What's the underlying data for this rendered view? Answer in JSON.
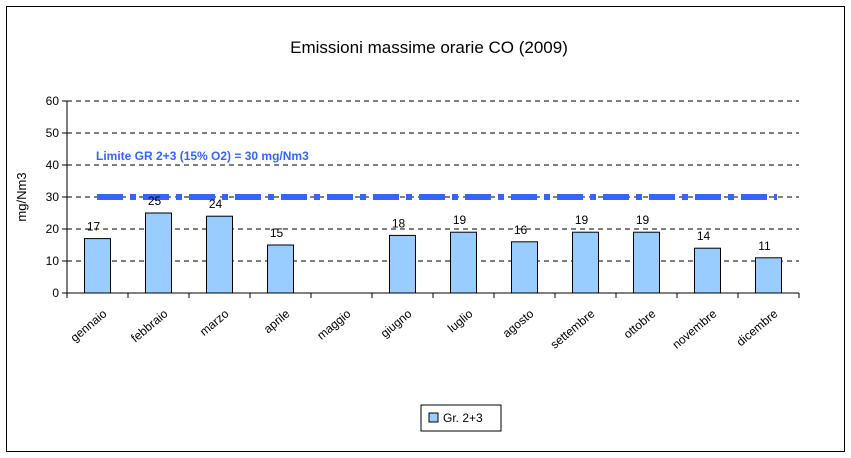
{
  "chart_data": {
    "type": "bar",
    "title": "Emissioni massime orarie CO (2009)",
    "xlabel": "",
    "ylabel": "mg/Nm3",
    "ylim": [
      0,
      60
    ],
    "yticks": [
      0,
      10,
      20,
      30,
      40,
      50,
      60
    ],
    "grid": true,
    "legend_position": "bottom",
    "categories": [
      "gennaio",
      "febbraio",
      "marzo",
      "aprile",
      "maggio",
      "giugno",
      "luglio",
      "agosto",
      "settembre",
      "ottobre",
      "novembre",
      "dicembre"
    ],
    "series": [
      {
        "name": "Gr. 2+3",
        "color": "#99ccff",
        "values": [
          17,
          25,
          24,
          15,
          null,
          18,
          19,
          16,
          19,
          19,
          14,
          11
        ],
        "labels": [
          "17",
          "25",
          "24",
          "15",
          "",
          "18",
          "19",
          "16",
          "19",
          "19",
          "14",
          "11"
        ]
      }
    ],
    "reference_line": {
      "label": "Limite GR 2+3 (15% O2) = 30 mg/Nm3",
      "value": 30,
      "color": "#3366ff"
    }
  }
}
